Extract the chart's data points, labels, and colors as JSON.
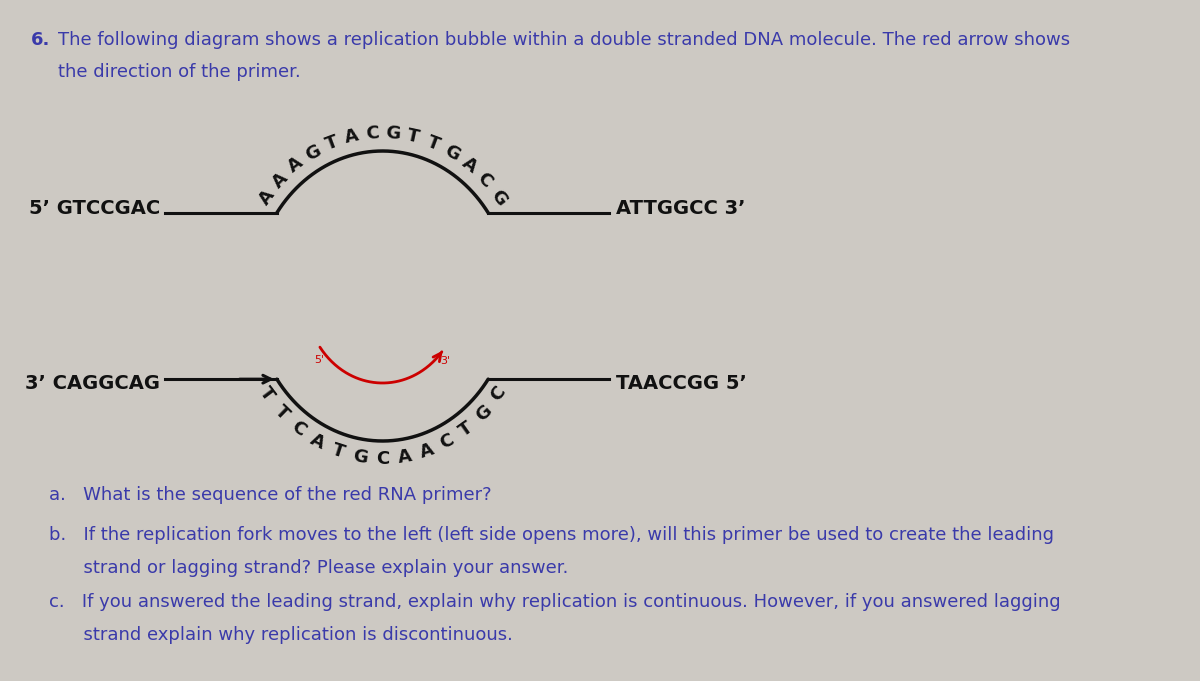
{
  "title_number": "6.",
  "title_text": "The following diagram shows a replication bubble within a double stranded DNA molecule. The red arrow shows",
  "title_text2": "the direction of the primer.",
  "title_color": "#3a3aaa",
  "background_color": "#cdc9c3",
  "top_strand_seq": "AAAGTACGTTGACG",
  "bottom_strand_seq": "TTCATGCAACTGC",
  "left_label_top": "5’ GTCCGAC",
  "left_label_bottom": "3’ CAGGCAG",
  "right_label_top": "ATTGGCC 3’",
  "right_label_bottom": "TAACCGG 5’",
  "strand_color": "#111111",
  "primer_color": "#cc0000",
  "questions_a": "a.   What is the sequence of the red RNA primer?",
  "questions_b": "b.   If the replication fork moves to the left (left side opens more), will this primer be used to create the leading strand or lagging strand? Please explain your answer.",
  "questions_c": "c.   If you answered the leading strand, explain why replication is continuous. However, if you answered lagging strand explain why replication is discontinuous.",
  "question_color": "#3a3aaa",
  "question_fontsize": 13
}
